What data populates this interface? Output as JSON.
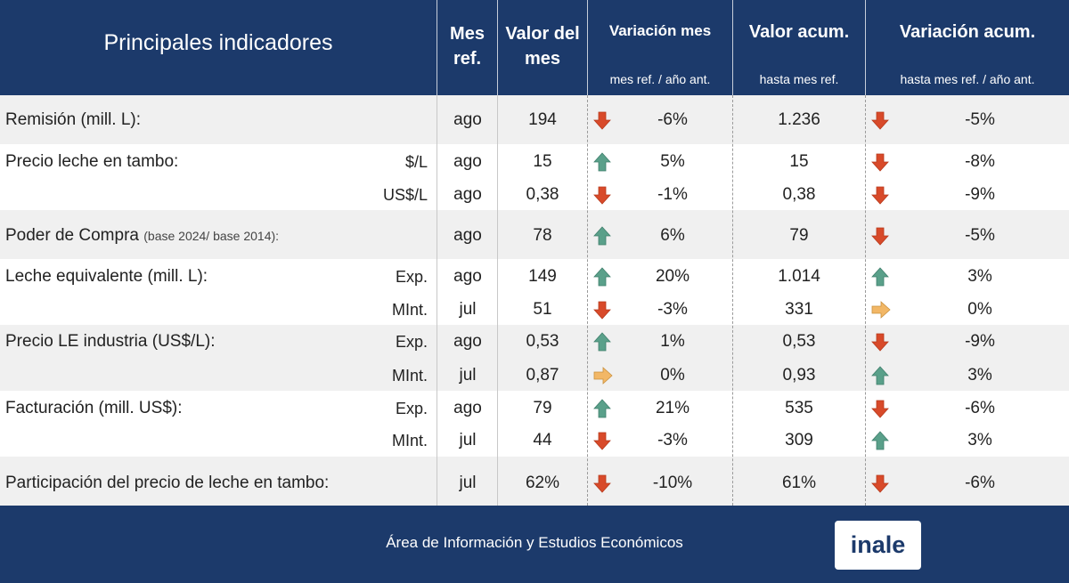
{
  "header": {
    "title": "Principales indicadores",
    "col_mes_1": "Mes",
    "col_mes_2": "ref.",
    "col_valor_1": "Valor del",
    "col_valor_2": "mes",
    "col_var_mes": "Variación mes",
    "col_var_mes_sub": "mes ref. / año ant.",
    "col_acum": "Valor acum.",
    "col_acum_sub": "hasta mes ref.",
    "col_var_acum": "Variación acum.",
    "col_var_acum_sub": "hasta mes ref. / año ant."
  },
  "colors": {
    "header_bg": "#1c3a6b",
    "up": "#5aa08a",
    "down": "#d84a2a",
    "flat": "#f2b766",
    "shade": "#f0f0f0"
  },
  "rows": [
    {
      "label": "Remisión (mill. L):",
      "label_note": "",
      "unit": "",
      "mes": "ago",
      "valor": "194",
      "var_mes_dir": "down",
      "var_mes": "-6%",
      "acum": "1.236",
      "var_acum_dir": "down",
      "var_acum": "-5%"
    },
    {
      "label": "Precio leche en tambo:",
      "label_note": "",
      "unit": "$/L",
      "mes": "ago",
      "valor": "15",
      "var_mes_dir": "up",
      "var_mes": "5%",
      "acum": "15",
      "var_acum_dir": "down",
      "var_acum": "-8%"
    },
    {
      "label": "",
      "label_note": "",
      "unit": "US$/L",
      "mes": "ago",
      "valor": "0,38",
      "var_mes_dir": "down",
      "var_mes": "-1%",
      "acum": "0,38",
      "var_acum_dir": "down",
      "var_acum": "-9%"
    },
    {
      "label": "Poder de Compra",
      "label_note": "(base 2024/ base 2014):",
      "unit": "",
      "mes": "ago",
      "valor": "78",
      "var_mes_dir": "up",
      "var_mes": "6%",
      "acum": "79",
      "var_acum_dir": "down",
      "var_acum": "-5%"
    },
    {
      "label": "Leche equivalente (mill. L):",
      "label_note": "",
      "unit": "Exp.",
      "mes": "ago",
      "valor": "149",
      "var_mes_dir": "up",
      "var_mes": "20%",
      "acum": "1.014",
      "var_acum_dir": "up",
      "var_acum": "3%"
    },
    {
      "label": "",
      "label_note": "",
      "unit": "MInt.",
      "mes": "jul",
      "valor": "51",
      "var_mes_dir": "down",
      "var_mes": "-3%",
      "acum": "331",
      "var_acum_dir": "flat",
      "var_acum": "0%"
    },
    {
      "label": "Precio LE industria (US$/L):",
      "label_note": "",
      "unit": "Exp.",
      "mes": "ago",
      "valor": "0,53",
      "var_mes_dir": "up",
      "var_mes": "1%",
      "acum": "0,53",
      "var_acum_dir": "down",
      "var_acum": "-9%"
    },
    {
      "label": "",
      "label_note": "",
      "unit": "MInt.",
      "mes": "jul",
      "valor": "0,87",
      "var_mes_dir": "flat",
      "var_mes": "0%",
      "acum": "0,93",
      "var_acum_dir": "up",
      "var_acum": "3%"
    },
    {
      "label": "Facturación (mill. US$):",
      "label_note": "",
      "unit": "Exp.",
      "mes": "ago",
      "valor": "79",
      "var_mes_dir": "up",
      "var_mes": "21%",
      "acum": "535",
      "var_acum_dir": "down",
      "var_acum": "-6%"
    },
    {
      "label": "",
      "label_note": "",
      "unit": "MInt.",
      "mes": "jul",
      "valor": "44",
      "var_mes_dir": "down",
      "var_mes": "-3%",
      "acum": "309",
      "var_acum_dir": "up",
      "var_acum": "3%"
    },
    {
      "label": "Participación del precio de leche en tambo:",
      "label_note": "",
      "unit": "",
      "mes": "jul",
      "valor": "62%",
      "var_mes_dir": "down",
      "var_mes": "-10%",
      "acum": "61%",
      "var_acum_dir": "down",
      "var_acum": "-6%"
    }
  ],
  "footer": {
    "text": "Área de Información y Estudios Económicos",
    "logo": "inale"
  }
}
